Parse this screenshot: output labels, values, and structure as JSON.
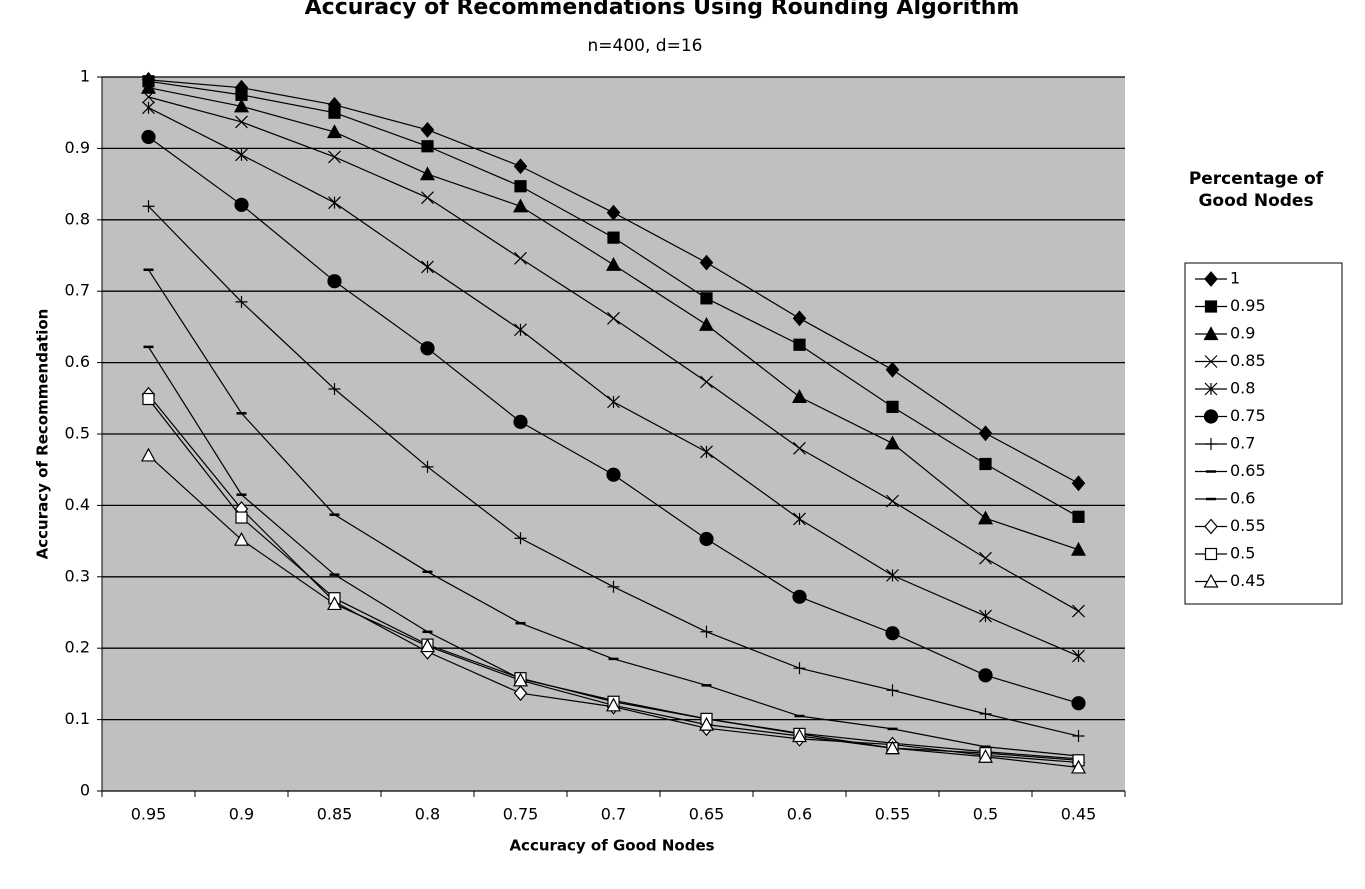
{
  "chart_data": {
    "type": "line",
    "title": "Accuracy of Recommendations Using Rounding Algorithm",
    "subtitle": "n=400, d=16",
    "x_label": "Accuracy of Good Nodes",
    "y_label": "Accuracy of Recommendation",
    "legend_title": "Percentage of Good Nodes",
    "legend_position": "right",
    "grid": true,
    "plot_background": "#c0c0c0",
    "categories": [
      "0.95",
      "0.9",
      "0.85",
      "0.8",
      "0.75",
      "0.7",
      "0.65",
      "0.6",
      "0.55",
      "0.5",
      "0.45"
    ],
    "ylim": [
      0,
      1
    ],
    "yticks": [
      0,
      0.1,
      0.2,
      0.3,
      0.4,
      0.5,
      0.6,
      0.7,
      0.8,
      0.9,
      1
    ],
    "series": [
      {
        "name": "1",
        "color": "#000000",
        "marker": "diamond",
        "marker_fill": "#000000",
        "values": [
          0.996,
          0.985,
          0.961,
          0.926,
          0.875,
          0.81,
          0.74,
          0.662,
          0.59,
          0.501,
          0.431
        ]
      },
      {
        "name": "0.95",
        "color": "#000000",
        "marker": "square",
        "marker_fill": "#000000",
        "values": [
          0.994,
          0.975,
          0.95,
          0.903,
          0.847,
          0.775,
          0.69,
          0.625,
          0.538,
          0.458,
          0.384
        ]
      },
      {
        "name": "0.9",
        "color": "#000000",
        "marker": "triangle",
        "marker_fill": "#000000",
        "values": [
          0.985,
          0.959,
          0.923,
          0.864,
          0.819,
          0.737,
          0.653,
          0.552,
          0.487,
          0.382,
          0.338
        ]
      },
      {
        "name": "0.85",
        "color": "#000000",
        "marker": "x",
        "marker_fill": "#000000",
        "values": [
          0.972,
          0.937,
          0.888,
          0.831,
          0.746,
          0.662,
          0.573,
          0.48,
          0.406,
          0.326,
          0.252
        ]
      },
      {
        "name": "0.8",
        "color": "#000000",
        "marker": "star",
        "marker_fill": "#000000",
        "values": [
          0.957,
          0.891,
          0.824,
          0.734,
          0.646,
          0.545,
          0.475,
          0.381,
          0.302,
          0.245,
          0.189
        ]
      },
      {
        "name": "0.75",
        "color": "#000000",
        "marker": "circle",
        "marker_fill": "#000000",
        "values": [
          0.916,
          0.821,
          0.714,
          0.62,
          0.517,
          0.443,
          0.353,
          0.272,
          0.221,
          0.162,
          0.123
        ]
      },
      {
        "name": "0.7",
        "color": "#000000",
        "marker": "plus",
        "marker_fill": "#000000",
        "values": [
          0.819,
          0.685,
          0.563,
          0.454,
          0.354,
          0.286,
          0.223,
          0.172,
          0.141,
          0.108,
          0.077
        ]
      },
      {
        "name": "0.65",
        "color": "#000000",
        "marker": "dash",
        "marker_fill": "#000000",
        "values": [
          0.73,
          0.529,
          0.387,
          0.307,
          0.235,
          0.185,
          0.148,
          0.105,
          0.087,
          0.062,
          0.049
        ]
      },
      {
        "name": "0.6",
        "color": "#000000",
        "marker": "dash",
        "marker_fill": "#000000",
        "values": [
          0.622,
          0.415,
          0.303,
          0.223,
          0.157,
          0.127,
          0.101,
          0.081,
          0.067,
          0.055,
          0.045
        ]
      },
      {
        "name": "0.55",
        "color": "#000000",
        "marker": "diamond",
        "marker_fill": "#ffffff",
        "values": [
          0.555,
          0.395,
          0.265,
          0.195,
          0.137,
          0.118,
          0.088,
          0.073,
          0.065,
          0.05,
          0.04
        ]
      },
      {
        "name": "0.5",
        "color": "#000000",
        "marker": "square",
        "marker_fill": "#ffffff",
        "values": [
          0.549,
          0.383,
          0.27,
          0.205,
          0.158,
          0.125,
          0.101,
          0.08,
          0.06,
          0.053,
          0.043
        ]
      },
      {
        "name": "0.45",
        "color": "#000000",
        "marker": "triangle",
        "marker_fill": "#ffffff",
        "values": [
          0.47,
          0.352,
          0.262,
          0.203,
          0.155,
          0.12,
          0.093,
          0.077,
          0.06,
          0.048,
          0.033
        ]
      }
    ]
  }
}
